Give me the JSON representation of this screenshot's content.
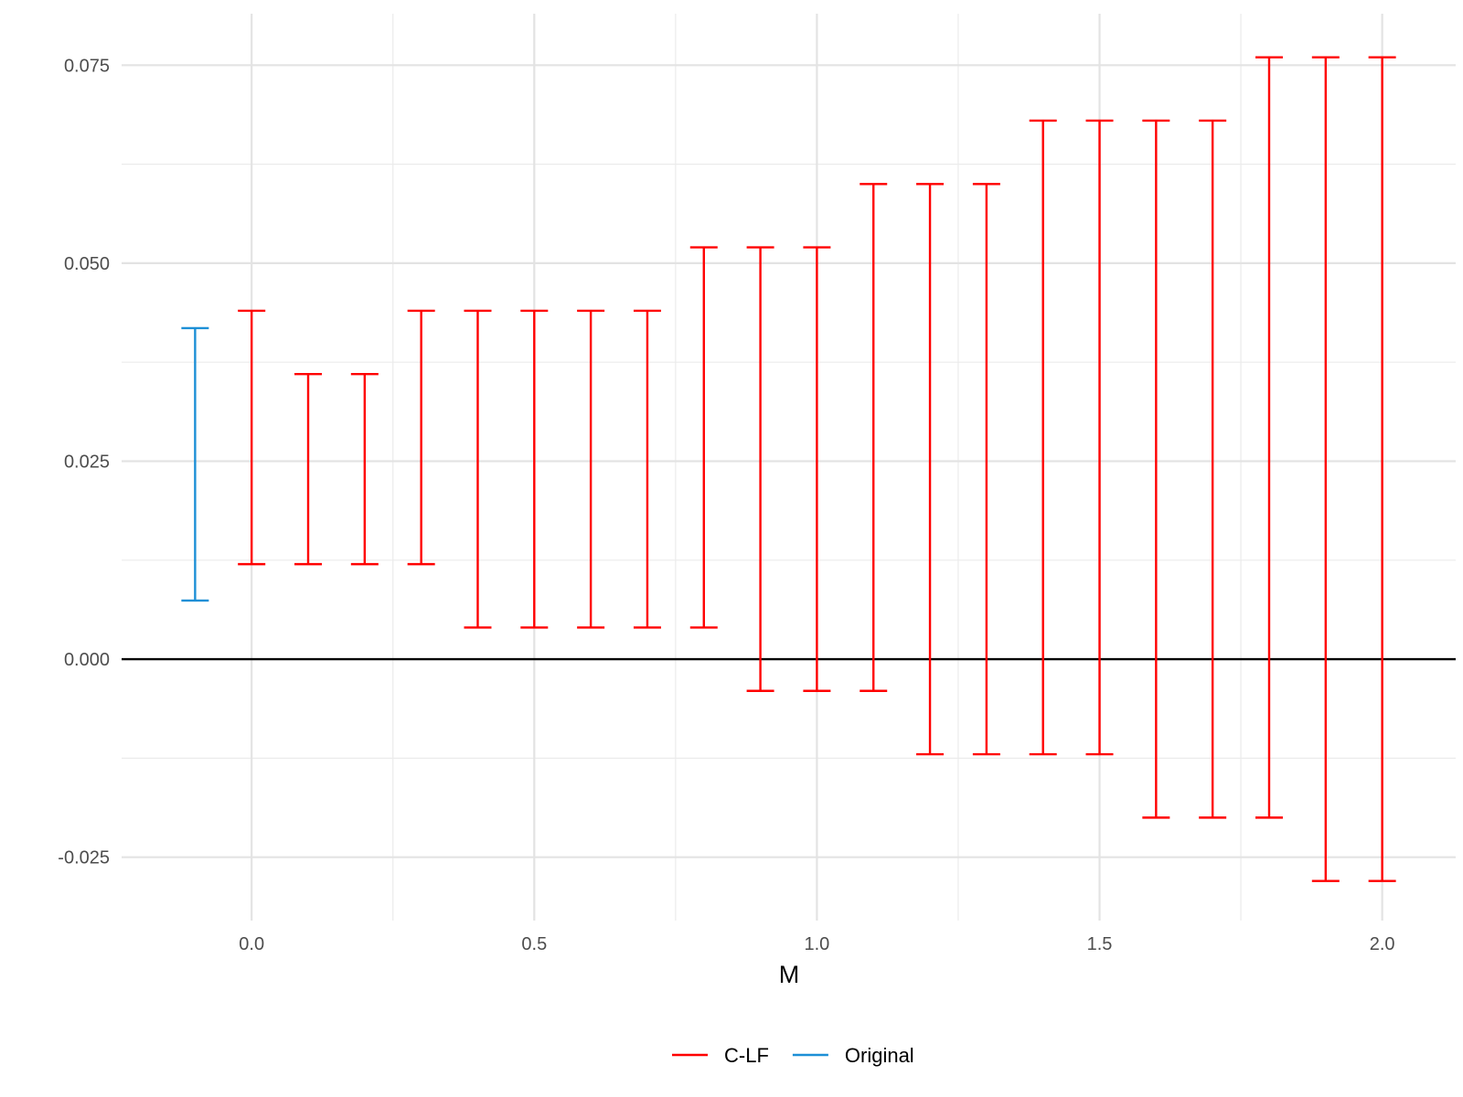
{
  "chart_data": {
    "type": "errorbar",
    "title": "",
    "xlabel": "M",
    "ylabel": "",
    "xlim": [
      -0.23,
      2.13
    ],
    "ylim": [
      -0.033,
      0.0815
    ],
    "x_ticks": [
      0.0,
      0.5,
      1.0,
      1.5,
      2.0
    ],
    "x_tick_labels": [
      "0.0",
      "0.5",
      "1.0",
      "1.5",
      "2.0"
    ],
    "y_ticks": [
      -0.025,
      0.0,
      0.025,
      0.05,
      0.075
    ],
    "y_tick_labels": [
      "-0.025",
      "0.000",
      "0.025",
      "0.050",
      "0.075"
    ],
    "grid": true,
    "reference_line_y": 0,
    "legend_position": "bottom",
    "series": [
      {
        "name": "C-LF",
        "color": "#ff0000",
        "x": [
          0.0,
          0.1,
          0.2,
          0.3,
          0.4,
          0.5,
          0.6,
          0.7,
          0.8,
          0.9,
          1.0,
          1.1,
          1.2,
          1.3,
          1.4,
          1.5,
          1.6,
          1.7,
          1.8,
          1.9,
          2.0
        ],
        "lower": [
          0.012,
          0.012,
          0.012,
          0.012,
          0.004,
          0.004,
          0.004,
          0.004,
          0.004,
          -0.004,
          -0.004,
          -0.004,
          -0.012,
          -0.012,
          -0.012,
          -0.012,
          -0.02,
          -0.02,
          -0.02,
          -0.028,
          -0.028
        ],
        "upper": [
          0.044,
          0.036,
          0.036,
          0.044,
          0.044,
          0.044,
          0.044,
          0.044,
          0.052,
          0.052,
          0.052,
          0.06,
          0.06,
          0.06,
          0.068,
          0.068,
          0.068,
          0.068,
          0.076,
          0.076,
          0.076
        ]
      },
      {
        "name": "Original",
        "color": "#1c8fd6",
        "x": [
          -0.1
        ],
        "lower": [
          0.0074
        ],
        "upper": [
          0.0418
        ]
      }
    ]
  }
}
